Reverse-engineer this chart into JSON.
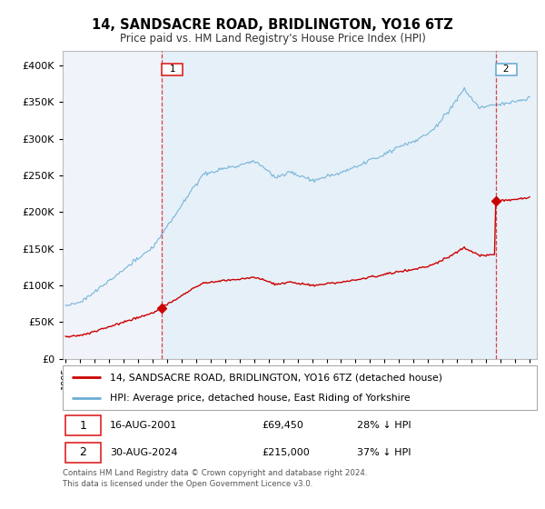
{
  "title": "14, SANDSACRE ROAD, BRIDLINGTON, YO16 6TZ",
  "subtitle": "Price paid vs. HM Land Registry's House Price Index (HPI)",
  "legend_line1": "14, SANDSACRE ROAD, BRIDLINGTON, YO16 6TZ (detached house)",
  "legend_line2": "HPI: Average price, detached house, East Riding of Yorkshire",
  "footnote": "Contains HM Land Registry data © Crown copyright and database right 2024.\nThis data is licensed under the Open Government Licence v3.0.",
  "hpi_color": "#6baed6",
  "price_color": "#cc0000",
  "vline_color": "#dd2222",
  "fill_color": "#ddeeff",
  "ylim": [
    0,
    420000
  ],
  "xlim_start": 1994.8,
  "xlim_end": 2027.5,
  "sale1_x": 2001.625,
  "sale1_y": 69450,
  "sale2_x": 2024.667,
  "sale2_y": 215000,
  "hpi_scale": 0.63,
  "seed": 17
}
